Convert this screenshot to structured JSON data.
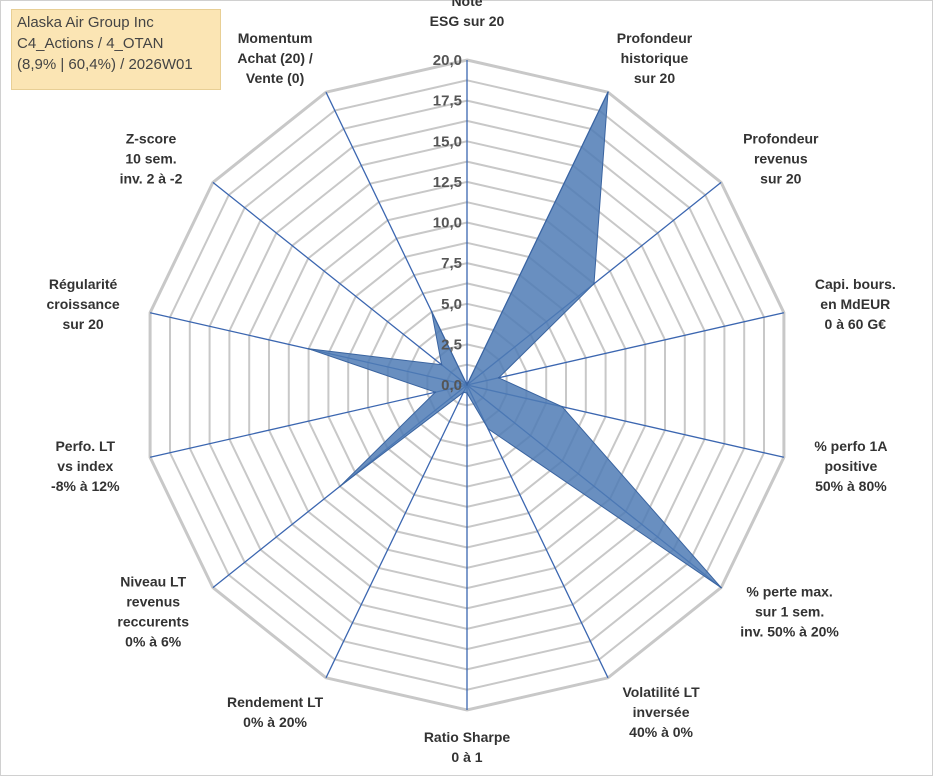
{
  "info_box": {
    "line1": "Alaska Air Group Inc",
    "line2": "C4_Actions / 4_OTAN",
    "line3": "(8,9% | 60,4%) / 2026W01"
  },
  "chart_data": {
    "type": "radar",
    "rmin": 0,
    "rmax": 20,
    "ticks": [
      "0,0",
      "2,5",
      "5,0",
      "7,5",
      "10,0",
      "12,5",
      "15,0",
      "17,5",
      "20,0"
    ],
    "grid": true,
    "colors": {
      "fill": "#4f7bb5",
      "spoke": "#3b66b0",
      "ring": "#c8c8c8"
    },
    "axes": [
      {
        "label": [
          "Note",
          "ESG sur 20"
        ],
        "value": 0.0
      },
      {
        "label": [
          "Profondeur",
          "historique",
          "sur 20"
        ],
        "value": 20.0
      },
      {
        "label": [
          "Profondeur",
          "revenus",
          "sur 20"
        ],
        "value": 10.0
      },
      {
        "label": [
          "Capi. bours.",
          "en MdEUR",
          "0 à 60 G€"
        ],
        "value": 2.0
      },
      {
        "label": [
          "% perfo 1A",
          "positive",
          "50% à 80%"
        ],
        "value": 6.0
      },
      {
        "label": [
          "% perte max.",
          "sur 1 sem.",
          "inv. 50% à 20%"
        ],
        "value": 20.0
      },
      {
        "label": [
          "Volatilité LT",
          "inversée",
          "40% à 0%"
        ],
        "value": 3.0
      },
      {
        "label": [
          "Ratio Sharpe",
          "0 à 1"
        ],
        "value": 0.5
      },
      {
        "label": [
          "Rendement LT",
          "0% à 20%"
        ],
        "value": 0.5
      },
      {
        "label": [
          "Niveau LT",
          "revenus",
          "reccurents",
          "0% à 6%"
        ],
        "value": 10.0
      },
      {
        "label": [
          "Perfo. LT",
          "vs index",
          "-8% à 12%"
        ],
        "value": 2.0
      },
      {
        "label": [
          "Régularité",
          "croissance",
          "sur 20"
        ],
        "value": 10.0
      },
      {
        "label": [
          "Z-score",
          "10 sem.",
          "inv. 2 à -2"
        ],
        "value": 2.0
      },
      {
        "label": [
          "Momentum",
          "Achat (20) /",
          "Vente (0)"
        ],
        "value": 5.0
      }
    ]
  }
}
